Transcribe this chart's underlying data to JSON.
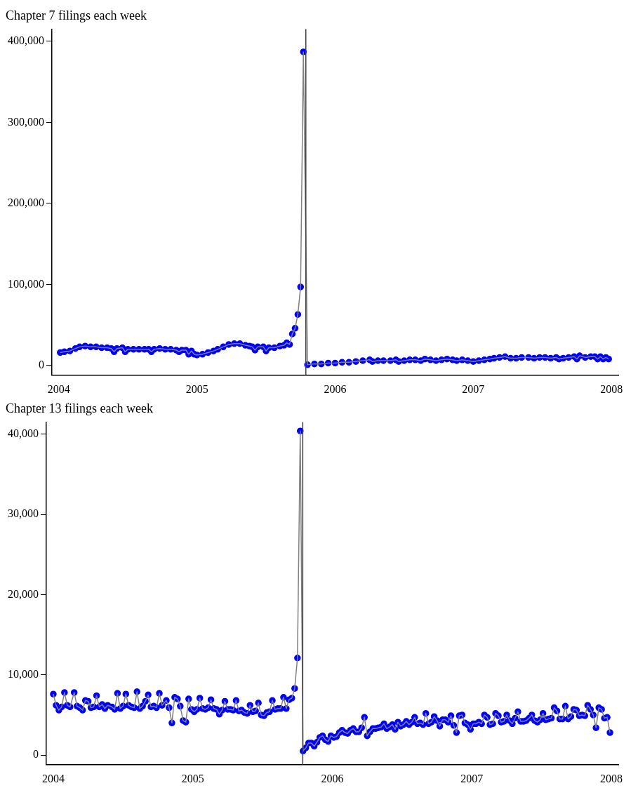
{
  "chart_data": [
    {
      "type": "line",
      "title": "Chapter 7 filings each week",
      "marker": "circle",
      "grid": false,
      "legend": false,
      "xlim": [
        2003.95,
        2008.05
      ],
      "xticks": [
        2004,
        2005,
        2006,
        2007,
        2008
      ],
      "ylim": [
        -12000,
        415000
      ],
      "yticks": [
        0,
        {
          "value": 100000,
          "label": "100,000"
        },
        {
          "value": 200000,
          "label": "200,000"
        },
        {
          "value": 300000,
          "label": "300,000"
        },
        {
          "value": 400000,
          "label": "400,000"
        }
      ],
      "ref_lines": [
        {
          "axis": "x",
          "value": 2005.788,
          "color": "#404040"
        }
      ],
      "series": [
        {
          "color": "#0000ff",
          "x": [
            2004.01,
            2004.04,
            2004.08,
            2004.12,
            2004.15,
            2004.19,
            2004.23,
            2004.27,
            2004.31,
            2004.35,
            2004.38,
            2004.4,
            2004.42,
            2004.46,
            2004.48,
            2004.5,
            2004.54,
            2004.58,
            2004.62,
            2004.65,
            2004.67,
            2004.69,
            2004.73,
            2004.77,
            2004.81,
            2004.85,
            2004.87,
            2004.89,
            2004.92,
            2004.94,
            2004.96,
            2004.98,
            2005.0,
            2005.04,
            2005.08,
            2005.12,
            2005.15,
            2005.19,
            2005.23,
            2005.27,
            2005.31,
            2005.35,
            2005.38,
            2005.4,
            2005.42,
            2005.44,
            2005.48,
            2005.5,
            2005.52,
            2005.56,
            2005.6,
            2005.63,
            2005.65,
            2005.67,
            2005.69,
            2005.71,
            2005.73,
            2005.75,
            2005.77,
            2005.8,
            2005.85,
            2005.9,
            2005.95,
            2006.0,
            2006.05,
            2006.1,
            2006.15,
            2006.2,
            2006.25,
            2006.27,
            2006.31,
            2006.35,
            2006.4,
            2006.44,
            2006.46,
            2006.5,
            2006.54,
            2006.58,
            2006.62,
            2006.65,
            2006.69,
            2006.73,
            2006.77,
            2006.81,
            2006.85,
            2006.88,
            2006.92,
            2006.96,
            2007.0,
            2007.04,
            2007.08,
            2007.12,
            2007.15,
            2007.19,
            2007.23,
            2007.27,
            2007.31,
            2007.35,
            2007.4,
            2007.44,
            2007.48,
            2007.52,
            2007.56,
            2007.6,
            2007.62,
            2007.65,
            2007.69,
            2007.73,
            2007.75,
            2007.77,
            2007.81,
            2007.85,
            2007.88,
            2007.9,
            2007.92,
            2007.94,
            2007.96,
            2007.98
          ],
          "values": [
            16000,
            17000,
            18000,
            21000,
            23000,
            24000,
            23000,
            23000,
            22000,
            22000,
            21000,
            17000,
            21000,
            22000,
            17000,
            20000,
            20000,
            20000,
            20000,
            20000,
            17000,
            20000,
            21000,
            20000,
            20000,
            19000,
            17000,
            19000,
            19000,
            14000,
            18000,
            14000,
            13000,
            14000,
            16000,
            18000,
            20000,
            23000,
            26000,
            27000,
            27000,
            25000,
            24000,
            23000,
            19000,
            23000,
            23000,
            18000,
            22000,
            22000,
            24000,
            25000,
            28000,
            26000,
            39000,
            46000,
            63000,
            97000,
            387000,
            1000,
            2000,
            2000,
            3000,
            3000,
            4000,
            4000,
            5000,
            6000,
            7000,
            5000,
            6000,
            6000,
            6000,
            7000,
            5000,
            6000,
            7000,
            7000,
            6000,
            8000,
            7000,
            6000,
            7000,
            8000,
            7000,
            6000,
            7000,
            6000,
            5000,
            6000,
            7000,
            8000,
            9000,
            10000,
            11000,
            9000,
            9000,
            10000,
            10000,
            9000,
            10000,
            10000,
            9000,
            10000,
            8000,
            9000,
            10000,
            11000,
            8000,
            12000,
            10000,
            11000,
            11000,
            8000,
            11000,
            8000,
            10000,
            8000
          ]
        }
      ]
    },
    {
      "type": "line",
      "title": "Chapter 13 filings each week",
      "marker": "circle",
      "grid": false,
      "legend": false,
      "xlim": [
        2003.95,
        2008.05
      ],
      "xticks": [
        2004,
        2005,
        2006,
        2007,
        2008
      ],
      "ylim": [
        -1200,
        41500
      ],
      "yticks": [
        0,
        {
          "value": 10000,
          "label": "10,000"
        },
        {
          "value": 20000,
          "label": "20,000"
        },
        {
          "value": 30000,
          "label": "30,000"
        },
        {
          "value": 40000,
          "label": "40,000"
        }
      ],
      "ref_lines": [
        {
          "axis": "x",
          "value": 2005.788,
          "color": "#404040"
        }
      ],
      "series": [
        {
          "color": "#0000ff",
          "x": [
            2004.0,
            2004.02,
            2004.04,
            2004.06,
            2004.08,
            2004.1,
            2004.12,
            2004.15,
            2004.17,
            2004.19,
            2004.21,
            2004.23,
            2004.25,
            2004.27,
            2004.29,
            2004.31,
            2004.33,
            2004.35,
            2004.37,
            2004.39,
            2004.42,
            2004.44,
            2004.46,
            2004.48,
            2004.5,
            2004.52,
            2004.54,
            2004.56,
            2004.58,
            2004.6,
            2004.62,
            2004.64,
            2004.66,
            2004.68,
            2004.7,
            2004.72,
            2004.74,
            2004.76,
            2004.78,
            2004.81,
            2004.83,
            2004.85,
            2004.87,
            2004.89,
            2004.91,
            2004.93,
            2004.95,
            2004.97,
            2004.99,
            2005.01,
            2005.03,
            2005.05,
            2005.07,
            2005.09,
            2005.11,
            2005.13,
            2005.15,
            2005.17,
            2005.19,
            2005.21,
            2005.23,
            2005.25,
            2005.27,
            2005.29,
            2005.31,
            2005.33,
            2005.35,
            2005.37,
            2005.39,
            2005.41,
            2005.43,
            2005.45,
            2005.47,
            2005.49,
            2005.51,
            2005.53,
            2005.55,
            2005.57,
            2005.59,
            2005.61,
            2005.63,
            2005.65,
            2005.67,
            2005.69,
            2005.71,
            2005.73,
            2005.75,
            2005.77,
            2005.79,
            2005.81,
            2005.83,
            2005.85,
            2005.87,
            2005.89,
            2005.91,
            2005.93,
            2005.95,
            2005.97,
            2005.99,
            2006.01,
            2006.03,
            2006.05,
            2006.07,
            2006.09,
            2006.11,
            2006.13,
            2006.15,
            2006.17,
            2006.19,
            2006.21,
            2006.23,
            2006.25,
            2006.27,
            2006.29,
            2006.31,
            2006.33,
            2006.35,
            2006.37,
            2006.39,
            2006.41,
            2006.43,
            2006.45,
            2006.47,
            2006.49,
            2006.51,
            2006.53,
            2006.55,
            2006.57,
            2006.59,
            2006.61,
            2006.63,
            2006.65,
            2006.67,
            2006.69,
            2006.71,
            2006.73,
            2006.75,
            2006.77,
            2006.79,
            2006.81,
            2006.83,
            2006.85,
            2006.87,
            2006.89,
            2006.91,
            2006.93,
            2006.95,
            2006.97,
            2006.99,
            2007.01,
            2007.03,
            2007.05,
            2007.07,
            2007.09,
            2007.11,
            2007.13,
            2007.15,
            2007.17,
            2007.19,
            2007.21,
            2007.23,
            2007.25,
            2007.27,
            2007.29,
            2007.31,
            2007.33,
            2007.35,
            2007.37,
            2007.39,
            2007.41,
            2007.43,
            2007.45,
            2007.47,
            2007.49,
            2007.51,
            2007.53,
            2007.55,
            2007.57,
            2007.59,
            2007.61,
            2007.63,
            2007.65,
            2007.67,
            2007.69,
            2007.71,
            2007.73,
            2007.75,
            2007.77,
            2007.79,
            2007.81,
            2007.83,
            2007.85,
            2007.87,
            2007.89,
            2007.91,
            2007.93,
            2007.95,
            2007.97,
            2007.99
          ],
          "values": [
            7600,
            6200,
            5600,
            6000,
            7800,
            6200,
            6000,
            7800,
            6100,
            5900,
            5600,
            6800,
            6700,
            5900,
            6000,
            7400,
            6000,
            6300,
            5800,
            6200,
            6000,
            5700,
            7700,
            5800,
            6100,
            7600,
            6200,
            6000,
            5900,
            7900,
            5800,
            6100,
            6700,
            7500,
            6000,
            6100,
            5900,
            7700,
            6200,
            6800,
            5900,
            4000,
            7200,
            7000,
            6100,
            4300,
            4100,
            7000,
            5700,
            5400,
            5700,
            7100,
            5800,
            5700,
            5900,
            6900,
            5800,
            5700,
            5100,
            5600,
            6700,
            5700,
            5700,
            5600,
            6800,
            5500,
            5600,
            5300,
            5200,
            6200,
            5400,
            5500,
            6500,
            5000,
            4900,
            5300,
            5400,
            6800,
            5700,
            5800,
            5800,
            7200,
            5800,
            6900,
            7100,
            8300,
            12100,
            40400,
            500,
            900,
            1500,
            1500,
            1100,
            1600,
            2200,
            2400,
            1900,
            1700,
            2400,
            2200,
            2300,
            2800,
            3100,
            2800,
            2700,
            3100,
            3300,
            2900,
            2900,
            3400,
            4700,
            2400,
            2900,
            3300,
            3300,
            3400,
            3500,
            3900,
            3300,
            3500,
            3800,
            3200,
            4100,
            3600,
            3800,
            4200,
            3800,
            4100,
            4700,
            3900,
            4000,
            3800,
            5200,
            3900,
            4100,
            4800,
            4300,
            3600,
            4400,
            4400,
            4100,
            4900,
            3700,
            2800,
            4900,
            5000,
            4000,
            3800,
            3200,
            3900,
            3900,
            4100,
            3900,
            5000,
            4700,
            3800,
            3900,
            5200,
            4900,
            4100,
            4200,
            5000,
            4300,
            3900,
            4600,
            5400,
            4200,
            4200,
            4300,
            4600,
            5000,
            4300,
            4100,
            4400,
            5200,
            4400,
            4500,
            4600,
            5900,
            5500,
            4500,
            4500,
            6100,
            4500,
            4800,
            5700,
            5600,
            4900,
            5000,
            4900,
            6200,
            5700,
            5000,
            3400,
            5900,
            5700,
            4600,
            4700,
            2800
          ]
        }
      ]
    }
  ]
}
